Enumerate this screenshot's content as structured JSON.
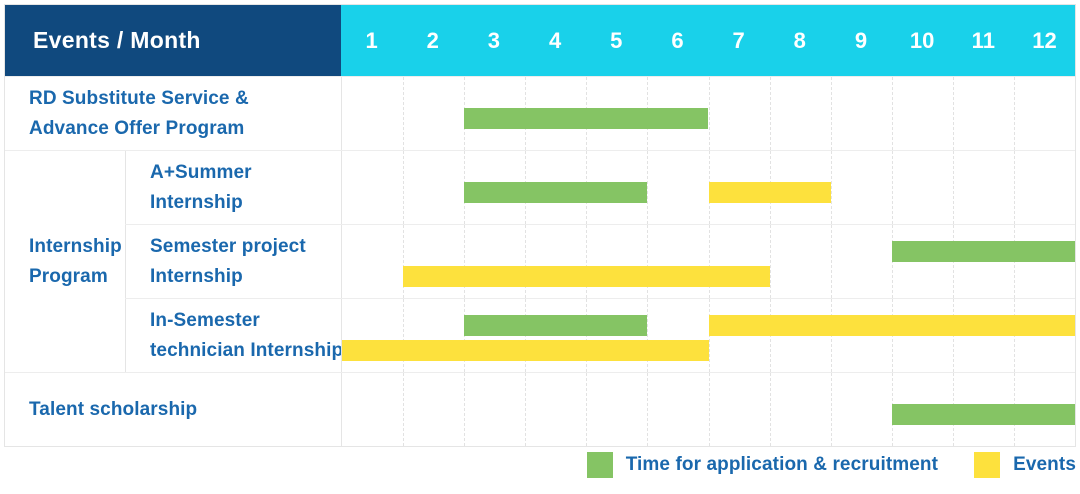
{
  "header": {
    "title": "Events / Month",
    "months": [
      "1",
      "2",
      "3",
      "4",
      "5",
      "6",
      "7",
      "8",
      "9",
      "10",
      "11",
      "12"
    ]
  },
  "colors": {
    "navy": "#10497e",
    "cyan": "#19d1ea",
    "green": "#85c464",
    "yellow": "#fde13d",
    "text_blue": "#1a68ad",
    "gridline": "#e2e2e2"
  },
  "labels": {
    "row1": {
      "line1": "RD Substitute Service &",
      "line2": "Advance Offer Program"
    },
    "group": {
      "line1": "Internship",
      "line2": "Program"
    },
    "row2": {
      "line1": "A+Summer",
      "line2": "Internship"
    },
    "row3": {
      "line1": "Semester project",
      "line2": "Internship"
    },
    "row4": {
      "line1": "In-Semester",
      "line2": "technician Internship"
    },
    "row5": {
      "line1": "Talent scholarship"
    }
  },
  "chart_data": {
    "type": "bar",
    "subtype": "gantt-schedule",
    "title": "Events / Month",
    "x_axis": {
      "label": "Month",
      "categories": [
        "1",
        "2",
        "3",
        "4",
        "5",
        "6",
        "7",
        "8",
        "9",
        "10",
        "11",
        "12"
      ],
      "range": [
        1,
        12
      ]
    },
    "grid": "dashed-vertical-month-lines",
    "legend_position": "bottom-right",
    "legend": [
      {
        "name": "Time for application & recruitment",
        "color": "#85c464",
        "color_key": "green"
      },
      {
        "name": "Events",
        "color": "#fde13d",
        "color_key": "yellow"
      }
    ],
    "rows": [
      {
        "group": null,
        "label": "RD Substitute Service & Advance Offer Program",
        "bars": [
          {
            "series": "Time for application & recruitment",
            "color": "green",
            "start_month": 3,
            "end_month": 6,
            "lane": 0
          }
        ]
      },
      {
        "group": "Internship Program",
        "label": "A+Summer Internship",
        "bars": [
          {
            "series": "Time for application & recruitment",
            "color": "green",
            "start_month": 3,
            "end_month": 5,
            "lane": 0
          },
          {
            "series": "Events",
            "color": "yellow",
            "start_month": 7,
            "end_month": 8,
            "lane": 0
          }
        ]
      },
      {
        "group": "Internship Program",
        "label": "Semester project Internship",
        "bars": [
          {
            "series": "Time for application & recruitment",
            "color": "green",
            "start_month": 10,
            "end_month": 12,
            "lane": 0
          },
          {
            "series": "Events",
            "color": "yellow",
            "start_month": 2,
            "end_month": 7,
            "lane": 1
          }
        ]
      },
      {
        "group": "Internship Program",
        "label": "In-Semester technician Internship",
        "bars": [
          {
            "series": "Time for application & recruitment",
            "color": "green",
            "start_month": 3,
            "end_month": 5,
            "lane": 0
          },
          {
            "series": "Events",
            "color": "yellow",
            "start_month": 7,
            "end_month": 12,
            "lane": 0
          },
          {
            "series": "Events",
            "color": "yellow",
            "start_month": 1,
            "end_month": 6,
            "lane": 1
          }
        ]
      },
      {
        "group": null,
        "label": "Talent scholarship",
        "bars": [
          {
            "series": "Time for application & recruitment",
            "color": "green",
            "start_month": 10,
            "end_month": 12,
            "lane": 0
          }
        ]
      }
    ]
  }
}
